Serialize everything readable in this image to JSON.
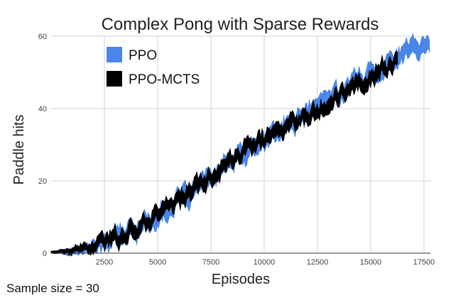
{
  "chart_data": {
    "type": "line",
    "title": "Complex Pong with Sparse Rewards",
    "xlabel": "Episodes",
    "ylabel": "Paddle hits",
    "xlim": [
      0,
      17800
    ],
    "ylim": [
      0,
      60
    ],
    "x_ticks": [
      2500,
      5000,
      7500,
      10000,
      12500,
      15000,
      17500
    ],
    "x_tick_labels": [
      "2500",
      "5000",
      "7500",
      "10000",
      "12500",
      "15000",
      "17500"
    ],
    "y_ticks": [
      0,
      20,
      40,
      60
    ],
    "y_tick_labels": [
      "0",
      "20",
      "40",
      "60"
    ],
    "grid": true,
    "legend_position": "top-left",
    "series": [
      {
        "name": "PPO",
        "color": "#4a86e8",
        "x": [
          0,
          500,
          1000,
          1500,
          2000,
          2500,
          3000,
          3500,
          4000,
          4500,
          5000,
          5500,
          6000,
          6500,
          7000,
          7500,
          8000,
          8500,
          9000,
          9500,
          10000,
          10500,
          11000,
          11500,
          12000,
          12500,
          13000,
          13500,
          14000,
          14500,
          15000,
          15500,
          16000,
          16500,
          17000,
          17500,
          17800
        ],
        "values": [
          0.3,
          0.4,
          0.6,
          1.0,
          2.0,
          3.0,
          4.2,
          5.5,
          7.0,
          8.6,
          10.3,
          12.3,
          14.3,
          16.2,
          18.3,
          20.6,
          23.0,
          25.3,
          27.3,
          29.2,
          31.1,
          33.0,
          34.8,
          36.6,
          38.5,
          40.6,
          42.7,
          44.4,
          46.3,
          48.0,
          49.8,
          51.5,
          53.2,
          54.8,
          56.3,
          57.5,
          58.0
        ],
        "band": 1.7
      },
      {
        "name": "PPO-MCTS",
        "color": "#000000",
        "x": [
          0,
          500,
          1000,
          1500,
          2000,
          2500,
          3000,
          3500,
          4000,
          4500,
          5000,
          5500,
          6000,
          6500,
          7000,
          7500,
          8000,
          8500,
          9000,
          9500,
          10000,
          10500,
          11000,
          11500,
          12000,
          12500,
          13000,
          13500,
          14000,
          14500,
          15000,
          15500,
          16000,
          16300
        ],
        "values": [
          0.3,
          0.4,
          0.6,
          1.0,
          2.1,
          3.2,
          4.5,
          5.8,
          7.4,
          9.1,
          10.9,
          13.0,
          15.0,
          17.0,
          19.2,
          21.4,
          23.7,
          25.8,
          27.8,
          29.7,
          31.5,
          33.3,
          35.1,
          36.9,
          38.8,
          40.3,
          42.0,
          43.6,
          45.4,
          47.2,
          48.9,
          50.8,
          52.4,
          53.2
        ],
        "band": 1.5
      }
    ]
  },
  "footer": {
    "note": "Sample size = 30"
  }
}
